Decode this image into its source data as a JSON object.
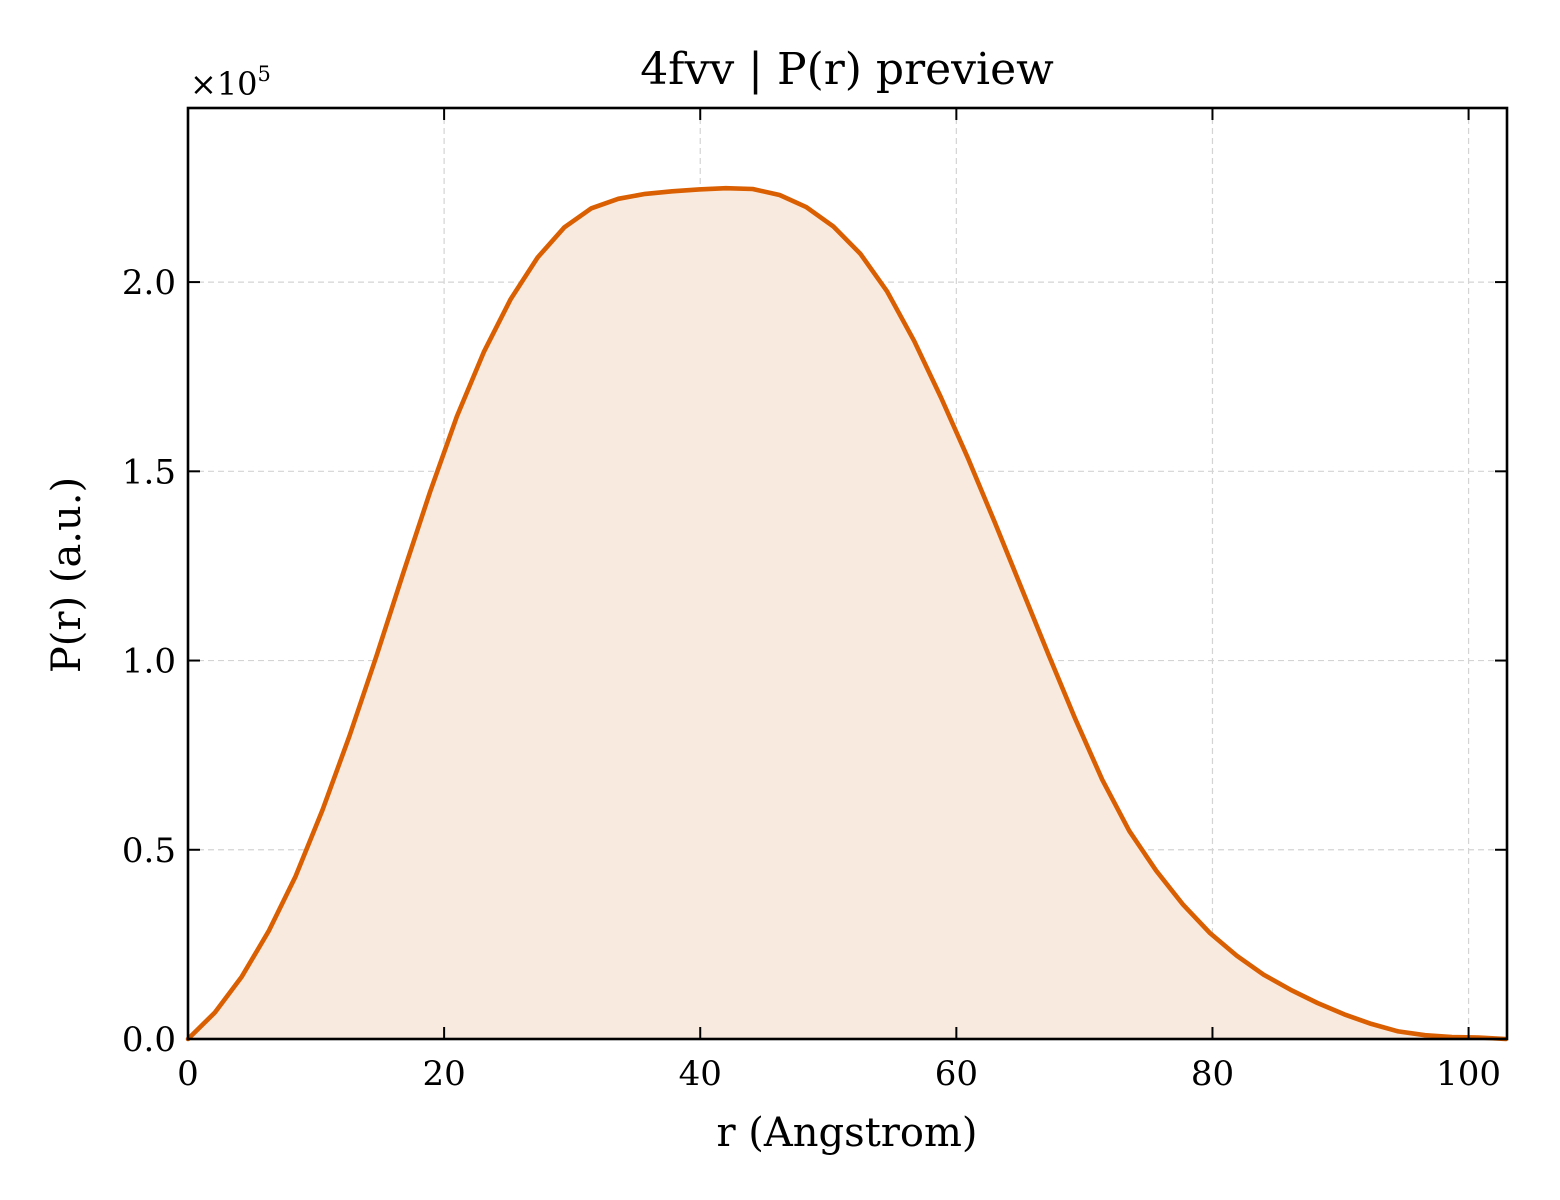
{
  "chart_data": {
    "type": "area",
    "title": "4fvv | P(r) preview",
    "xlabel": "r (Angstrom)",
    "ylabel": "P(r) (a.u.)",
    "y_scale_label_prefix": "×10",
    "y_scale_label_exponent": "5",
    "y_scale_factor": 100000,
    "xlim": [
      0,
      103
    ],
    "ylim": [
      0,
      246000
    ],
    "xticks": [
      0,
      20,
      40,
      60,
      80,
      100
    ],
    "xtick_labels": [
      "0",
      "20",
      "40",
      "60",
      "80",
      "100"
    ],
    "yticks": [
      0,
      50000,
      100000,
      150000,
      200000
    ],
    "ytick_labels": [
      "0.0",
      "0.5",
      "1.0",
      "1.5",
      "2.0"
    ],
    "grid": true,
    "colors": {
      "line": "#d95f02",
      "fill": "#f9eadf"
    },
    "series": [
      {
        "x": [
          0,
          2.1,
          4.2,
          6.3,
          8.4,
          10.5,
          12.6,
          14.7,
          16.8,
          18.9,
          21.0,
          23.1,
          25.2,
          27.3,
          29.4,
          31.5,
          33.6,
          35.7,
          37.8,
          39.9,
          42.0,
          44.1,
          46.2,
          48.3,
          50.4,
          52.5,
          54.6,
          56.7,
          58.8,
          60.9,
          63.0,
          65.1,
          67.2,
          69.3,
          71.4,
          73.5,
          75.6,
          77.7,
          79.8,
          81.9,
          84.0,
          86.1,
          88.2,
          90.3,
          92.4,
          94.5,
          96.6,
          98.7,
          100.8,
          102.9
        ],
        "y": [
          0,
          7000,
          16500,
          28500,
          43000,
          60500,
          80000,
          101000,
          123000,
          144500,
          164500,
          181500,
          195500,
          206500,
          214500,
          219500,
          222000,
          223300,
          224000,
          224500,
          224800,
          224600,
          223000,
          219800,
          214700,
          207500,
          197500,
          184500,
          169500,
          153500,
          136500,
          119000,
          101500,
          84500,
          68500,
          55000,
          44500,
          35500,
          28000,
          22000,
          17000,
          13000,
          9500,
          6500,
          4000,
          2000,
          1000,
          500,
          400,
          0
        ]
      }
    ]
  }
}
